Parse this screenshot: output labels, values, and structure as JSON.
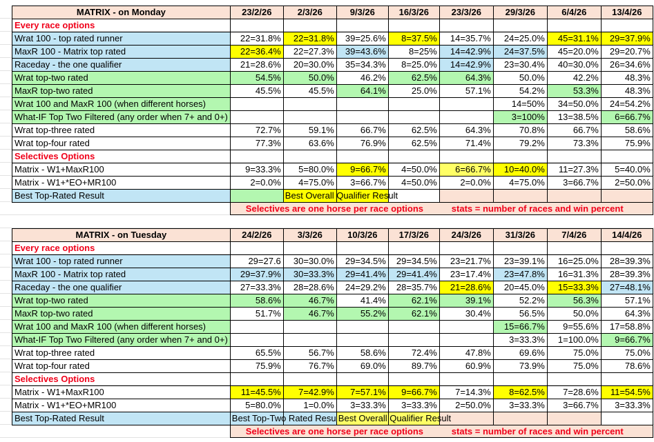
{
  "colors": {
    "blue": "#C1E5F5",
    "green": "#B3F7B0",
    "yellow": "#FFFF00",
    "lightyellow": "#FFFF66",
    "peach": "#FBE2D5",
    "white": "#FFFFFF",
    "red": "#F0001A"
  },
  "tables": [
    {
      "title": "MATRIX - on Monday",
      "dates": [
        "23/2/26",
        "2/3/26",
        "9/3/26",
        "16/3/26",
        "23/3/26",
        "29/3/26",
        "6/4/26",
        "13/4/26"
      ],
      "rows": [
        {
          "label": "Every race options",
          "type": "section",
          "cells": [
            "",
            "",
            "",
            "",
            "",
            "",
            "",
            ""
          ]
        },
        {
          "label": "Wrat 100 - top rated runner",
          "bg": "blue",
          "cells": [
            {
              "v": "22=31.8%"
            },
            {
              "v": "22=31.8%",
              "bg": "yellow"
            },
            {
              "v": "39=25.6%"
            },
            {
              "v": "8=37.5%",
              "bg": "yellow"
            },
            {
              "v": "14=35.7%"
            },
            {
              "v": "24=25.0%"
            },
            {
              "v": "45=31.1%",
              "bg": "yellow"
            },
            {
              "v": "29=37.9%",
              "bg": "yellow"
            }
          ]
        },
        {
          "label": "MaxR 100 - Matrix top rated",
          "bg": "blue",
          "cells": [
            {
              "v": "22=36.4%",
              "bg": "yellow"
            },
            {
              "v": "22=27.3%"
            },
            {
              "v": "39=43.6%",
              "bg": "blue"
            },
            {
              "v": "8=25%"
            },
            {
              "v": "14=42.9%",
              "bg": "blue"
            },
            {
              "v": "24=37.5%",
              "bg": "blue"
            },
            {
              "v": "45=20.0%"
            },
            {
              "v": "29=20.7%"
            }
          ]
        },
        {
          "label": "Raceday - the one qualifier",
          "bg": "blue",
          "cells": [
            {
              "v": "21=28.6%"
            },
            {
              "v": "20=30.0%"
            },
            {
              "v": "35=34.3%"
            },
            {
              "v": "8=25.0%"
            },
            {
              "v": "14=42.9%",
              "bg": "blue"
            },
            {
              "v": "23=30.4%"
            },
            {
              "v": "40=30.0%"
            },
            {
              "v": "26=34.6%"
            }
          ]
        },
        {
          "label": "Wrat top-two rated",
          "bg": "green",
          "cells": [
            {
              "v": "54.5%",
              "bg": "green"
            },
            {
              "v": "50.0%",
              "bg": "green"
            },
            {
              "v": "46.2%"
            },
            {
              "v": "62.5%",
              "bg": "green"
            },
            {
              "v": "64.3%",
              "bg": "green"
            },
            {
              "v": "50.0%"
            },
            {
              "v": "42.2%"
            },
            {
              "v": "48.3%"
            }
          ]
        },
        {
          "label": "MaxR top-two rated",
          "bg": "green",
          "cells": [
            {
              "v": "45.5%"
            },
            {
              "v": "45.5%"
            },
            {
              "v": "64.1%",
              "bg": "green"
            },
            {
              "v": "25.0%"
            },
            {
              "v": "57.1%"
            },
            {
              "v": "54.2%"
            },
            {
              "v": "53.3%",
              "bg": "green"
            },
            {
              "v": "48.3%"
            }
          ]
        },
        {
          "label": "Wrat 100 and MaxR 100 (when different horses)",
          "bg": "green",
          "cells": [
            {
              "v": ""
            },
            {
              "v": ""
            },
            {
              "v": ""
            },
            {
              "v": ""
            },
            {
              "v": ""
            },
            {
              "v": "14=50%"
            },
            {
              "v": "34=50.0%"
            },
            {
              "v": "24=54.2%"
            }
          ]
        },
        {
          "label": "What-IF Top Two Filtered (any order when 7+ and 0+)",
          "bg": "green",
          "cells": [
            {
              "v": ""
            },
            {
              "v": ""
            },
            {
              "v": ""
            },
            {
              "v": ""
            },
            {
              "v": ""
            },
            {
              "v": "3=100%",
              "bg": "green"
            },
            {
              "v": "13=38.5%"
            },
            {
              "v": "6=66.7%",
              "bg": "green"
            }
          ]
        },
        {
          "label": "Wrat top-three rated",
          "cells": [
            {
              "v": "72.7%"
            },
            {
              "v": "59.1%"
            },
            {
              "v": "66.7%"
            },
            {
              "v": "62.5%"
            },
            {
              "v": "64.3%"
            },
            {
              "v": "70.8%"
            },
            {
              "v": "66.7%"
            },
            {
              "v": "58.6%"
            }
          ]
        },
        {
          "label": "Wrat top-four rated",
          "cells": [
            {
              "v": "77.3%"
            },
            {
              "v": "63.6%"
            },
            {
              "v": "76.9%"
            },
            {
              "v": "62.5%"
            },
            {
              "v": "71.4%"
            },
            {
              "v": "79.2%"
            },
            {
              "v": "73.3%"
            },
            {
              "v": "75.9%"
            }
          ]
        },
        {
          "label": "Selectives Options",
          "type": "section",
          "cells": [
            "",
            "",
            "",
            "",
            "",
            "",
            "",
            ""
          ]
        },
        {
          "label": "Matrix - W1+MaxR100",
          "red_plus": true,
          "cells": [
            {
              "v": "9=33.3%"
            },
            {
              "v": "5=80.0%"
            },
            {
              "v": "9=66.7%",
              "bg": "yellow"
            },
            {
              "v": "4=50.0%"
            },
            {
              "v": "6=66.7%",
              "bg": "lightyellow"
            },
            {
              "v": "10=40.0%",
              "bg": "yellow"
            },
            {
              "v": "11=27.3%"
            },
            {
              "v": "5=40.0%"
            }
          ]
        },
        {
          "label": "Matrix - W1+*EO+MR100",
          "red_plus": true,
          "cells": [
            {
              "v": "2=0.0%"
            },
            {
              "v": "4=75.0%"
            },
            {
              "v": "3=66.7%"
            },
            {
              "v": "4=50.0%"
            },
            {
              "v": "2=0.0%"
            },
            {
              "v": "4=75.0%"
            },
            {
              "v": "3=66.7%"
            },
            {
              "v": "2=50.0%"
            }
          ]
        },
        {
          "label": "Best Top-Rated Result",
          "bg": "blue",
          "type": "best",
          "cells": [
            {
              "v": "",
              "bg": "green"
            },
            {
              "v": "Best Overall Qualifier Result",
              "bg": "yellow"
            },
            {
              "v": "",
              "bg": "yellow"
            },
            {
              "v": ""
            },
            {
              "v": "",
              "bg": "peach"
            },
            {
              "v": "",
              "bg": "peach"
            },
            {
              "v": "",
              "bg": "peach"
            },
            {
              "v": "",
              "bg": "peach"
            }
          ]
        }
      ],
      "footer": {
        "note1": "Selectives are one horse per race options",
        "note2": "stats = number of races and win percent"
      }
    },
    {
      "title": "MATRIX - on Tuesday",
      "dates": [
        "24/2/26",
        "3/3/26",
        "10/3/26",
        "17/3/26",
        "24/3/26",
        "31/3/26",
        "7/4/26",
        "14/4/26"
      ],
      "rows": [
        {
          "label": "Every race options",
          "type": "section",
          "cells": [
            "",
            "",
            "",
            "",
            "",
            "",
            "",
            ""
          ]
        },
        {
          "label": "Wrat 100 - top rated runner",
          "bg": "blue",
          "cells": [
            {
              "v": "29=27.6"
            },
            {
              "v": "30=30.0%"
            },
            {
              "v": "29=34.5%"
            },
            {
              "v": "29=34.5%"
            },
            {
              "v": "23=21.7%"
            },
            {
              "v": "23=39.1%"
            },
            {
              "v": "16=25.0%"
            },
            {
              "v": "28=39.3%"
            }
          ]
        },
        {
          "label": "MaxR 100 - Matrix top rated",
          "bg": "blue",
          "cells": [
            {
              "v": "29=37.9%",
              "bg": "blue"
            },
            {
              "v": "30=33.3%",
              "bg": "blue"
            },
            {
              "v": "29=41.4%",
              "bg": "blue"
            },
            {
              "v": "29=41.4%",
              "bg": "blue"
            },
            {
              "v": "23=17.4%"
            },
            {
              "v": "23=47.8%",
              "bg": "blue"
            },
            {
              "v": "16=31.3%"
            },
            {
              "v": "28=39.3%"
            }
          ]
        },
        {
          "label": "Raceday - the one qualifier",
          "bg": "blue",
          "cells": [
            {
              "v": "27=33.3%"
            },
            {
              "v": "28=28.6%"
            },
            {
              "v": "24=29.2%"
            },
            {
              "v": "28=35.7%"
            },
            {
              "v": "21=28.6%",
              "bg": "yellow"
            },
            {
              "v": "20=45.0%"
            },
            {
              "v": "15=33.3%",
              "bg": "yellow"
            },
            {
              "v": "27=48.1%",
              "bg": "blue"
            }
          ]
        },
        {
          "label": "Wrat top-two rated",
          "bg": "green",
          "cells": [
            {
              "v": "58.6%",
              "bg": "green"
            },
            {
              "v": "46.7%",
              "bg": "green"
            },
            {
              "v": "41.4%"
            },
            {
              "v": "62.1%",
              "bg": "green"
            },
            {
              "v": "39.1%",
              "bg": "green"
            },
            {
              "v": "52.2%"
            },
            {
              "v": "56.3%",
              "bg": "green"
            },
            {
              "v": "57.1%"
            }
          ]
        },
        {
          "label": "MaxR top-two rated",
          "bg": "green",
          "cells": [
            {
              "v": "51.7%"
            },
            {
              "v": "46.7%",
              "bg": "green"
            },
            {
              "v": "55.2%",
              "bg": "green"
            },
            {
              "v": "62.1%",
              "bg": "green"
            },
            {
              "v": "30.4%"
            },
            {
              "v": "56.5%"
            },
            {
              "v": "50.0%"
            },
            {
              "v": "64.3%"
            }
          ]
        },
        {
          "label": "Wrat 100 and MaxR 100 (when different horses)",
          "bg": "green",
          "cells": [
            {
              "v": ""
            },
            {
              "v": ""
            },
            {
              "v": ""
            },
            {
              "v": ""
            },
            {
              "v": ""
            },
            {
              "v": "15=66.7%",
              "bg": "green"
            },
            {
              "v": "9=55.6%"
            },
            {
              "v": "17=58.8%"
            }
          ]
        },
        {
          "label": "What-IF Top Two Filtered (any order when 7+ and 0+)",
          "bg": "green",
          "cells": [
            {
              "v": ""
            },
            {
              "v": ""
            },
            {
              "v": ""
            },
            {
              "v": ""
            },
            {
              "v": ""
            },
            {
              "v": "3=33.3%"
            },
            {
              "v": "1=100.0%"
            },
            {
              "v": "9=66.7%",
              "bg": "green"
            }
          ]
        },
        {
          "label": "Wrat top-three rated",
          "cells": [
            {
              "v": "65.5%"
            },
            {
              "v": "56.7%"
            },
            {
              "v": "58.6%"
            },
            {
              "v": "72.4%"
            },
            {
              "v": "47.8%"
            },
            {
              "v": "69.6%"
            },
            {
              "v": "75.0%"
            },
            {
              "v": "75.0%"
            }
          ]
        },
        {
          "label": "Wrat top-four rated",
          "cells": [
            {
              "v": "75.9%"
            },
            {
              "v": "76.7%"
            },
            {
              "v": "69.0%"
            },
            {
              "v": "89.7%"
            },
            {
              "v": "60.9%"
            },
            {
              "v": "73.9%"
            },
            {
              "v": "75.0%"
            },
            {
              "v": "78.6%"
            }
          ]
        },
        {
          "label": "Selectives Options",
          "type": "section",
          "cells": [
            "",
            "",
            "",
            "",
            "",
            "",
            "",
            ""
          ]
        },
        {
          "label": "Matrix - W1+MaxR100",
          "red_plus": true,
          "cells": [
            {
              "v": "11=45.5%",
              "bg": "yellow"
            },
            {
              "v": "7=42.9%",
              "bg": "yellow"
            },
            {
              "v": "7=57.1%",
              "bg": "yellow"
            },
            {
              "v": "9=66.7%",
              "bg": "yellow"
            },
            {
              "v": "7=14.3%"
            },
            {
              "v": "8=62.5%",
              "bg": "yellow"
            },
            {
              "v": "7=28.6%"
            },
            {
              "v": "11=54.5%",
              "bg": "yellow"
            }
          ]
        },
        {
          "label": "Matrix - W1+*EO+MR100",
          "red_plus": true,
          "cells": [
            {
              "v": "5=80.0%"
            },
            {
              "v": "1=0.0%"
            },
            {
              "v": "3=33.3%"
            },
            {
              "v": "3=33.3%"
            },
            {
              "v": "2=50.0%"
            },
            {
              "v": "3=33.3%"
            },
            {
              "v": "3=66.7%"
            },
            {
              "v": "3=33.3%"
            }
          ]
        },
        {
          "label": "Best Top-Rated Result",
          "bg": "blue",
          "type": "best",
          "cells": [
            {
              "v": "Best Top-Two Rated Result",
              "bg": "blue",
              "clip": true
            },
            {
              "v": "",
              "bg": "blue"
            },
            {
              "v": "Best Overall Qualifier Result",
              "bg": "lightyellow"
            },
            {
              "v": "",
              "bg": "lightyellow"
            },
            {
              "v": "",
              "bg": "peach"
            },
            {
              "v": "",
              "bg": "peach"
            },
            {
              "v": "",
              "bg": "peach"
            },
            {
              "v": ""
            }
          ]
        }
      ],
      "footer": {
        "note1": "Selectives are one horse per race options",
        "note2": "stats = number of races and win percent"
      }
    }
  ]
}
